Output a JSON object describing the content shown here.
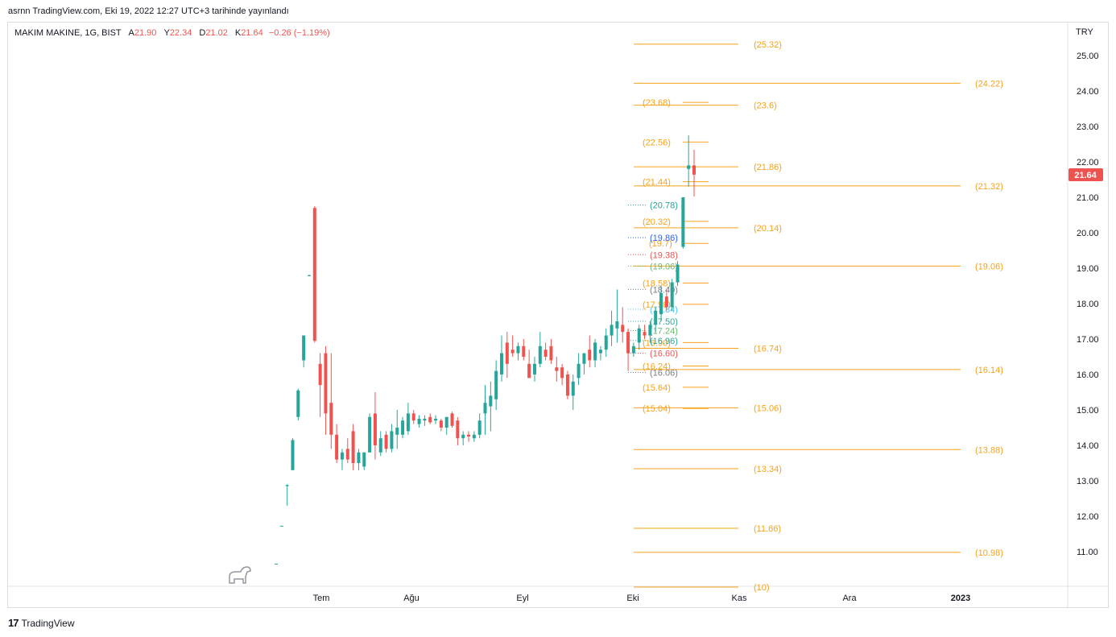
{
  "header": {
    "publish_line": "asrnn TradingView.com, Eki 19, 2022 12:27 UTC+3 tarihinde yayınlandı"
  },
  "legend": {
    "symbol": "MAKIM MAKINE, 1G, BIST",
    "open_label": "A",
    "open": "21.90",
    "high_label": "Y",
    "high": "22.34",
    "low_label": "D",
    "low": "21.02",
    "close_label": "K",
    "close": "21.64",
    "change": "−0.26 (−1.19%)"
  },
  "price_axis": {
    "currency": "TRY",
    "last_price": "21.64",
    "last_price_color": "#ef5350"
  },
  "footer": {
    "brand_logo": "17",
    "brand_name": "TradingView"
  },
  "colors": {
    "up": "#26a69a",
    "down": "#ef5350",
    "level_orange": "#f7a21b"
  },
  "chart_data": {
    "type": "candlestick",
    "title": "MAKIM MAKINE, 1G, BIST",
    "ylim": [
      10.0,
      25.3
    ],
    "y_ticks": [
      "25.00",
      "24.00",
      "23.00",
      "22.00",
      "21.00",
      "20.00",
      "19.00",
      "18.00",
      "17.00",
      "16.00",
      "15.00",
      "14.00",
      "13.00",
      "12.00",
      "11.00"
    ],
    "x_ticks": [
      "Tem",
      "Ağu",
      "Eyl",
      "Eki",
      "Kas",
      "Ara",
      "2023"
    ],
    "grid": false,
    "candles": [
      {
        "o": 10.65,
        "h": 10.66,
        "l": 10.64,
        "c": 10.66
      },
      {
        "o": 11.72,
        "h": 11.73,
        "l": 11.71,
        "c": 11.73
      },
      {
        "o": 12.85,
        "h": 12.9,
        "l": 12.3,
        "c": 12.88
      },
      {
        "o": 13.3,
        "h": 14.2,
        "l": 13.3,
        "c": 14.15
      },
      {
        "o": 14.8,
        "h": 15.6,
        "l": 14.7,
        "c": 15.55
      },
      {
        "o": 16.4,
        "h": 17.1,
        "l": 16.2,
        "c": 17.1
      },
      {
        "o": 18.8,
        "h": 18.82,
        "l": 18.78,
        "c": 18.8
      },
      {
        "o": 20.7,
        "h": 20.75,
        "l": 16.9,
        "c": 16.95
      },
      {
        "o": 16.3,
        "h": 16.6,
        "l": 14.8,
        "c": 15.7
      },
      {
        "o": 16.6,
        "h": 16.8,
        "l": 14.3,
        "c": 14.9
      },
      {
        "o": 15.2,
        "h": 16.6,
        "l": 13.9,
        "c": 14.3
      },
      {
        "o": 14.3,
        "h": 14.6,
        "l": 13.5,
        "c": 13.6
      },
      {
        "o": 13.6,
        "h": 13.9,
        "l": 13.3,
        "c": 13.8
      },
      {
        "o": 13.9,
        "h": 14.2,
        "l": 13.5,
        "c": 13.6
      },
      {
        "o": 14.4,
        "h": 14.6,
        "l": 13.3,
        "c": 13.5
      },
      {
        "o": 13.5,
        "h": 13.9,
        "l": 13.3,
        "c": 13.8
      },
      {
        "o": 13.4,
        "h": 13.8,
        "l": 13.3,
        "c": 13.8
      },
      {
        "o": 13.8,
        "h": 14.9,
        "l": 13.8,
        "c": 14.8
      },
      {
        "o": 14.9,
        "h": 15.5,
        "l": 13.6,
        "c": 14.0
      },
      {
        "o": 13.8,
        "h": 14.4,
        "l": 13.7,
        "c": 14.2
      },
      {
        "o": 14.3,
        "h": 14.4,
        "l": 13.8,
        "c": 13.9
      },
      {
        "o": 13.9,
        "h": 14.6,
        "l": 13.8,
        "c": 14.4
      },
      {
        "o": 14.3,
        "h": 15.0,
        "l": 13.9,
        "c": 14.5
      },
      {
        "o": 14.3,
        "h": 14.8,
        "l": 14.2,
        "c": 14.7
      },
      {
        "o": 14.4,
        "h": 15.2,
        "l": 14.3,
        "c": 14.9
      },
      {
        "o": 14.9,
        "h": 15.0,
        "l": 14.6,
        "c": 14.7
      },
      {
        "o": 14.6,
        "h": 14.85,
        "l": 14.5,
        "c": 14.75
      },
      {
        "o": 14.7,
        "h": 14.85,
        "l": 14.55,
        "c": 14.75
      },
      {
        "o": 14.8,
        "h": 14.9,
        "l": 14.6,
        "c": 14.65
      },
      {
        "o": 14.7,
        "h": 14.85,
        "l": 14.6,
        "c": 14.75
      },
      {
        "o": 14.7,
        "h": 14.75,
        "l": 14.4,
        "c": 14.5
      },
      {
        "o": 14.5,
        "h": 14.8,
        "l": 14.3,
        "c": 14.8
      },
      {
        "o": 14.9,
        "h": 14.95,
        "l": 14.5,
        "c": 14.55
      },
      {
        "o": 14.7,
        "h": 14.8,
        "l": 14.0,
        "c": 14.2
      },
      {
        "o": 14.2,
        "h": 14.4,
        "l": 14.0,
        "c": 14.3
      },
      {
        "o": 14.3,
        "h": 14.4,
        "l": 14.1,
        "c": 14.25
      },
      {
        "o": 14.2,
        "h": 14.4,
        "l": 14.1,
        "c": 14.3
      },
      {
        "o": 14.3,
        "h": 14.9,
        "l": 14.2,
        "c": 14.7
      },
      {
        "o": 14.9,
        "h": 15.7,
        "l": 14.3,
        "c": 15.2
      },
      {
        "o": 15.1,
        "h": 15.8,
        "l": 14.4,
        "c": 15.4
      },
      {
        "o": 15.3,
        "h": 16.4,
        "l": 15.0,
        "c": 16.1
      },
      {
        "o": 16.0,
        "h": 17.1,
        "l": 15.8,
        "c": 16.6
      },
      {
        "o": 16.9,
        "h": 17.2,
        "l": 15.9,
        "c": 16.3
      },
      {
        "o": 16.7,
        "h": 17.1,
        "l": 16.5,
        "c": 16.6
      },
      {
        "o": 16.6,
        "h": 16.9,
        "l": 16.4,
        "c": 16.8
      },
      {
        "o": 16.8,
        "h": 17.0,
        "l": 16.4,
        "c": 16.5
      },
      {
        "o": 16.3,
        "h": 16.7,
        "l": 15.9,
        "c": 15.9
      },
      {
        "o": 16.0,
        "h": 16.5,
        "l": 15.8,
        "c": 16.3
      },
      {
        "o": 16.3,
        "h": 17.2,
        "l": 16.2,
        "c": 16.8
      },
      {
        "o": 16.7,
        "h": 16.9,
        "l": 16.4,
        "c": 16.5
      },
      {
        "o": 16.8,
        "h": 17.0,
        "l": 16.3,
        "c": 16.4
      },
      {
        "o": 16.2,
        "h": 16.5,
        "l": 15.8,
        "c": 16.1
      },
      {
        "o": 16.2,
        "h": 16.3,
        "l": 15.7,
        "c": 15.9
      },
      {
        "o": 16.0,
        "h": 16.1,
        "l": 15.3,
        "c": 15.4
      },
      {
        "o": 15.4,
        "h": 16.0,
        "l": 15.0,
        "c": 15.8
      },
      {
        "o": 15.9,
        "h": 16.6,
        "l": 15.7,
        "c": 16.3
      },
      {
        "o": 16.3,
        "h": 16.6,
        "l": 16.0,
        "c": 16.6
      },
      {
        "o": 16.7,
        "h": 17.1,
        "l": 16.2,
        "c": 16.4
      },
      {
        "o": 16.4,
        "h": 17.0,
        "l": 16.2,
        "c": 16.9
      },
      {
        "o": 16.6,
        "h": 16.8,
        "l": 16.4,
        "c": 16.7
      },
      {
        "o": 16.7,
        "h": 17.3,
        "l": 16.5,
        "c": 17.1
      },
      {
        "o": 17.1,
        "h": 17.8,
        "l": 16.8,
        "c": 17.4
      },
      {
        "o": 17.3,
        "h": 18.4,
        "l": 16.9,
        "c": 17.5
      },
      {
        "o": 17.4,
        "h": 17.9,
        "l": 16.9,
        "c": 17.2
      },
      {
        "o": 17.2,
        "h": 17.3,
        "l": 16.1,
        "c": 16.6
      },
      {
        "o": 16.6,
        "h": 16.9,
        "l": 16.5,
        "c": 16.8
      },
      {
        "o": 16.9,
        "h": 17.4,
        "l": 16.7,
        "c": 17.3
      },
      {
        "o": 17.2,
        "h": 17.4,
        "l": 17.0,
        "c": 17.1
      },
      {
        "o": 17.1,
        "h": 17.5,
        "l": 16.9,
        "c": 17.4
      },
      {
        "o": 17.4,
        "h": 17.9,
        "l": 17.2,
        "c": 17.8
      },
      {
        "o": 17.7,
        "h": 18.5,
        "l": 17.5,
        "c": 18.3
      },
      {
        "o": 18.2,
        "h": 18.4,
        "l": 17.8,
        "c": 17.9
      },
      {
        "o": 17.9,
        "h": 18.7,
        "l": 17.8,
        "c": 18.6
      },
      {
        "o": 18.6,
        "h": 19.2,
        "l": 18.5,
        "c": 19.1
      },
      {
        "o": 19.6,
        "h": 20.9,
        "l": 19.55,
        "c": 21.0
      },
      {
        "o": 21.8,
        "h": 22.75,
        "l": 21.3,
        "c": 21.9
      },
      {
        "o": 21.9,
        "h": 22.34,
        "l": 21.02,
        "c": 21.64
      }
    ],
    "orange_levels": [
      {
        "value": "25.32",
        "y": 25.32
      },
      {
        "value": "24.22",
        "y": 24.22
      },
      {
        "value": "23.68",
        "y": 23.68
      },
      {
        "value": "23.6",
        "y": 23.6
      },
      {
        "value": "22.56",
        "y": 22.56
      },
      {
        "value": "21.86",
        "y": 21.86
      },
      {
        "value": "21.44",
        "y": 21.44
      },
      {
        "value": "21.32",
        "y": 21.32
      },
      {
        "value": "20.32",
        "y": 20.32
      },
      {
        "value": "20.14",
        "y": 20.14
      },
      {
        "value": "19.7",
        "y": 19.7
      },
      {
        "value": "19.06",
        "y": 19.06
      },
      {
        "value": "18.58",
        "y": 18.58
      },
      {
        "value": "17.98",
        "y": 17.98
      },
      {
        "value": "16.90",
        "y": 16.9
      },
      {
        "value": "16.74",
        "y": 16.74
      },
      {
        "value": "16.24",
        "y": 16.24
      },
      {
        "value": "16.14",
        "y": 16.14
      },
      {
        "value": "15.64",
        "y": 15.64
      },
      {
        "value": "15.04",
        "y": 15.04
      },
      {
        "value": "15.06",
        "y": 15.06
      },
      {
        "value": "13.88",
        "y": 13.88
      },
      {
        "value": "13.34",
        "y": 13.34
      },
      {
        "value": "11.66",
        "y": 11.66
      },
      {
        "value": "10.98",
        "y": 10.98
      },
      {
        "value": "10",
        "y": 10.0
      }
    ],
    "dotted_levels": [
      {
        "value": "20.78",
        "y": 20.78,
        "color": "#26a69a"
      },
      {
        "value": "19.86",
        "y": 19.86,
        "color": "#2962ff"
      },
      {
        "value": "19.38",
        "y": 19.38,
        "color": "#ef5350"
      },
      {
        "value": "19.06",
        "y": 19.06,
        "color": "#66bb6a"
      },
      {
        "value": "18.40",
        "y": 18.4,
        "color": "#787b86"
      },
      {
        "value": "17.84",
        "y": 17.84,
        "color": "#4fc3f7"
      },
      {
        "value": "17.50",
        "y": 17.5,
        "color": "#26a69a"
      },
      {
        "value": "17.24",
        "y": 17.24,
        "color": "#66bb6a"
      },
      {
        "value": "16.96",
        "y": 16.96,
        "color": "#26a69a"
      },
      {
        "value": "16.60",
        "y": 16.6,
        "color": "#ef5350"
      },
      {
        "value": "16.06",
        "y": 16.06,
        "color": "#787b86"
      }
    ]
  }
}
